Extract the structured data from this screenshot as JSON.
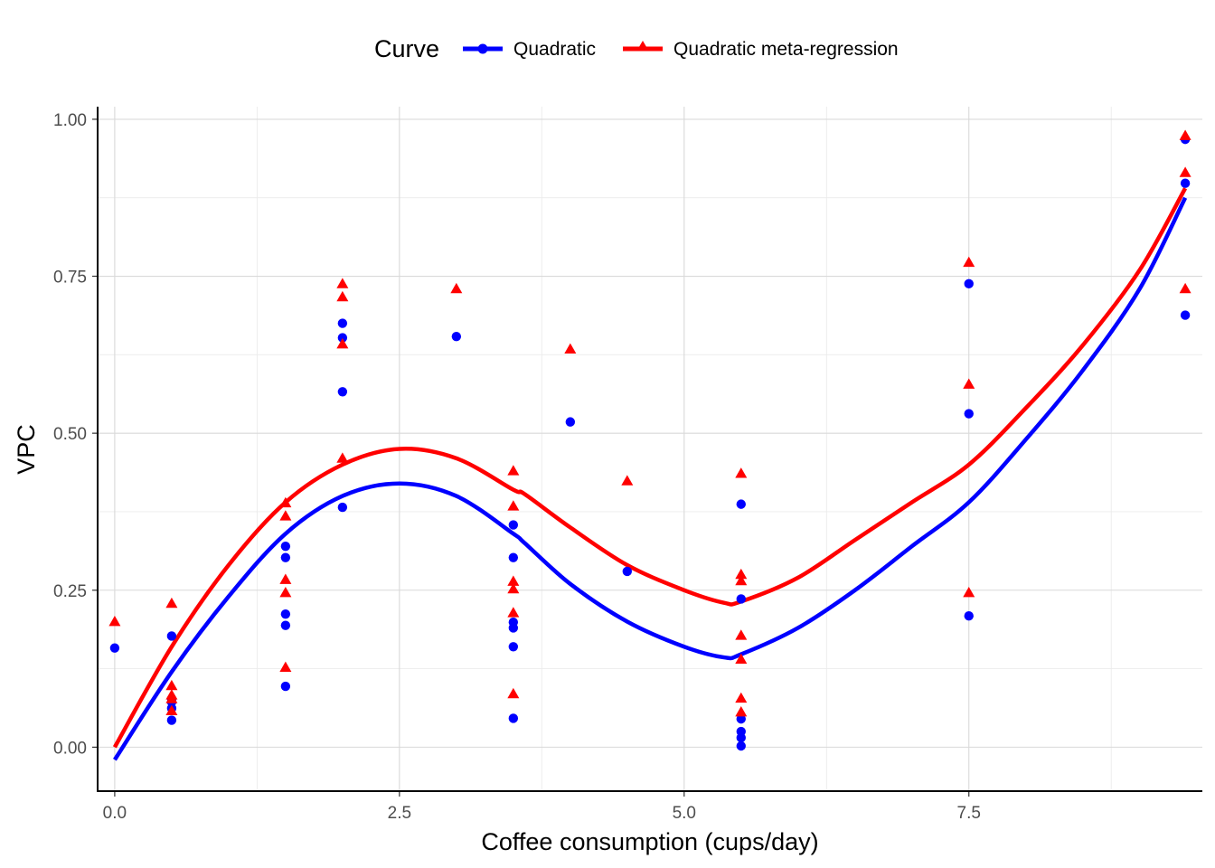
{
  "chart_data": {
    "type": "line",
    "xlabel": "Coffee consumption (cups/day)",
    "ylabel": "VPC",
    "xlim": [
      -0.15,
      9.55
    ],
    "ylim": [
      -0.07,
      1.02
    ],
    "x_ticks": [
      0,
      2.5,
      5,
      7.5
    ],
    "x_tick_labels": [
      "0.0",
      "2.5",
      "5.0",
      "7.5"
    ],
    "y_ticks": [
      0,
      0.25,
      0.5,
      0.75,
      1
    ],
    "y_tick_labels": [
      "0.00",
      "0.25",
      "0.50",
      "0.75",
      "1.00"
    ],
    "grid": true,
    "legend": {
      "title": "Curve",
      "position": "top",
      "entries": [
        "Quadratic",
        "Quadratic meta-regression"
      ]
    },
    "series": [
      {
        "name": "Quadratic",
        "color": "#0000ff",
        "marker": "circle",
        "curve": [
          [
            0,
            -0.02
          ],
          [
            0.5,
            0.12
          ],
          [
            1,
            0.24
          ],
          [
            1.5,
            0.34
          ],
          [
            2,
            0.4
          ],
          [
            2.5,
            0.42
          ],
          [
            3,
            0.4
          ],
          [
            3.5,
            0.34
          ],
          [
            3.6,
            0.325
          ],
          [
            4,
            0.26
          ],
          [
            4.5,
            0.2
          ],
          [
            5,
            0.16
          ],
          [
            5.35,
            0.143
          ],
          [
            5.5,
            0.148
          ],
          [
            6,
            0.19
          ],
          [
            6.5,
            0.25
          ],
          [
            7,
            0.32
          ],
          [
            7.5,
            0.39
          ],
          [
            8,
            0.49
          ],
          [
            8.5,
            0.6
          ],
          [
            9,
            0.73
          ],
          [
            9.4,
            0.875
          ]
        ],
        "points": [
          [
            0,
            0.158
          ],
          [
            0.5,
            0.177
          ],
          [
            0.5,
            0.077
          ],
          [
            0.5,
            0.072
          ],
          [
            0.5,
            0.062
          ],
          [
            0.5,
            0.043
          ],
          [
            1.5,
            0.32
          ],
          [
            1.5,
            0.302
          ],
          [
            1.5,
            0.212
          ],
          [
            1.5,
            0.194
          ],
          [
            1.5,
            0.097
          ],
          [
            2,
            0.675
          ],
          [
            2,
            0.652
          ],
          [
            2,
            0.566
          ],
          [
            2,
            0.382
          ],
          [
            3,
            0.654
          ],
          [
            3.5,
            0.354
          ],
          [
            3.5,
            0.302
          ],
          [
            3.5,
            0.199
          ],
          [
            3.5,
            0.19
          ],
          [
            3.5,
            0.16
          ],
          [
            3.5,
            0.046
          ],
          [
            4,
            0.518
          ],
          [
            4.5,
            0.28
          ],
          [
            5.5,
            0.387
          ],
          [
            5.5,
            0.236
          ],
          [
            5.5,
            0.045
          ],
          [
            5.5,
            0.025
          ],
          [
            5.5,
            0.015
          ],
          [
            5.5,
            0.002
          ],
          [
            7.5,
            0.738
          ],
          [
            7.5,
            0.531
          ],
          [
            7.5,
            0.209
          ],
          [
            9.4,
            0.968
          ],
          [
            9.4,
            0.898
          ],
          [
            9.4,
            0.688
          ]
        ]
      },
      {
        "name": "Quadratic meta-regression",
        "color": "#ff0000",
        "marker": "triangle",
        "curve": [
          [
            0,
            0.0
          ],
          [
            0.5,
            0.16
          ],
          [
            1,
            0.29
          ],
          [
            1.5,
            0.39
          ],
          [
            2,
            0.45
          ],
          [
            2.5,
            0.475
          ],
          [
            3,
            0.46
          ],
          [
            3.5,
            0.41
          ],
          [
            3.6,
            0.403
          ],
          [
            4,
            0.35
          ],
          [
            4.5,
            0.29
          ],
          [
            5,
            0.25
          ],
          [
            5.35,
            0.23
          ],
          [
            5.5,
            0.232
          ],
          [
            6,
            0.27
          ],
          [
            6.5,
            0.33
          ],
          [
            7,
            0.39
          ],
          [
            7.5,
            0.45
          ],
          [
            8,
            0.54
          ],
          [
            8.5,
            0.64
          ],
          [
            9,
            0.76
          ],
          [
            9.4,
            0.89
          ]
        ],
        "points": [
          [
            0,
            0.2
          ],
          [
            0.5,
            0.229
          ],
          [
            0.5,
            0.098
          ],
          [
            0.5,
            0.083
          ],
          [
            0.5,
            0.077
          ],
          [
            0.5,
            0.058
          ],
          [
            1.5,
            0.389
          ],
          [
            1.5,
            0.368
          ],
          [
            1.5,
            0.267
          ],
          [
            1.5,
            0.246
          ],
          [
            1.5,
            0.127
          ],
          [
            2,
            0.738
          ],
          [
            2,
            0.717
          ],
          [
            2,
            0.642
          ],
          [
            2,
            0.46
          ],
          [
            3,
            0.73
          ],
          [
            3.5,
            0.44
          ],
          [
            3.5,
            0.384
          ],
          [
            3.5,
            0.264
          ],
          [
            3.5,
            0.252
          ],
          [
            3.5,
            0.214
          ],
          [
            3.5,
            0.085
          ],
          [
            4,
            0.634
          ],
          [
            4.5,
            0.424
          ],
          [
            5.5,
            0.436
          ],
          [
            5.5,
            0.275
          ],
          [
            5.5,
            0.265
          ],
          [
            5.5,
            0.178
          ],
          [
            5.5,
            0.14
          ],
          [
            5.5,
            0.078
          ],
          [
            5.5,
            0.056
          ],
          [
            7.5,
            0.772
          ],
          [
            7.5,
            0.578
          ],
          [
            7.5,
            0.246
          ],
          [
            9.4,
            0.974
          ],
          [
            9.4,
            0.915
          ],
          [
            9.4,
            0.73
          ]
        ]
      }
    ]
  }
}
